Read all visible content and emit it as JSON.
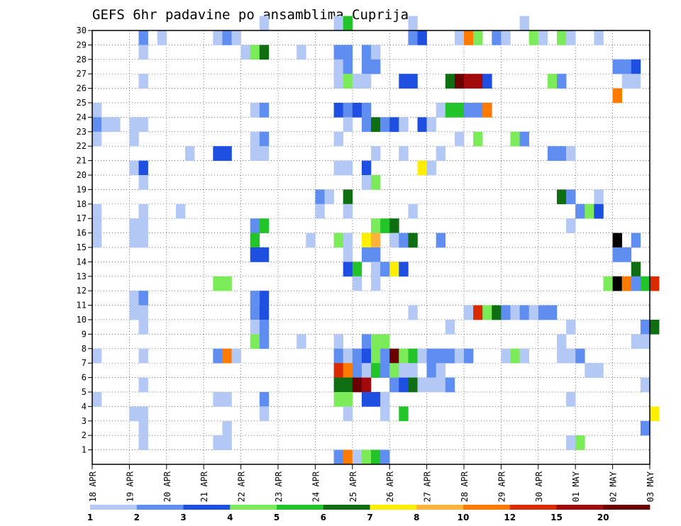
{
  "chart_data": {
    "type": "heatmap",
    "title": "GEFS 6hr padavine po ansamblima Cuprija",
    "x_tick_labels": [
      "18 APR",
      "19 APR",
      "20 APR",
      "21 APR",
      "22 APR",
      "23 APR",
      "24 APR",
      "25 APR",
      "26 APR",
      "27 APR",
      "28 APR",
      "29 APR",
      "30 APR",
      "01 MAY",
      "02 MAY",
      "03 MAY"
    ],
    "y_tick_labels": [
      "1",
      "2",
      "3",
      "4",
      "5",
      "6",
      "7",
      "8",
      "9",
      "10",
      "11",
      "12",
      "13",
      "14",
      "15",
      "16",
      "17",
      "18",
      "19",
      "20",
      "21",
      "22",
      "23",
      "24",
      "25",
      "26",
      "27",
      "28",
      "29",
      "30"
    ],
    "ylim": [
      0,
      30
    ],
    "x_steps": 61,
    "steps_per_day": 4,
    "grid": true,
    "legend_position": "bottom",
    "colorbar_labels": [
      "1",
      "2",
      "3",
      "4",
      "5",
      "6",
      "7",
      "8",
      "10",
      "12",
      "15",
      "20"
    ],
    "colorbar_colors": [
      "#b3c8f5",
      "#5f8ef0",
      "#1f4fe0",
      "#7ceb5a",
      "#22c42a",
      "#0f6e12",
      "#ffee00",
      "#ffb33a",
      "#ff7a00",
      "#d92a00",
      "#a10a0a",
      "#6a0000"
    ],
    "cells": [
      {
        "m": 30,
        "t": [
          [
            18,
            1
          ],
          [
            26,
            1
          ],
          [
            27,
            5
          ],
          [
            34,
            1
          ],
          [
            46,
            1
          ]
        ]
      },
      {
        "m": 29,
        "t": [
          [
            5,
            2
          ],
          [
            7,
            1
          ],
          [
            13,
            1
          ],
          [
            14,
            2
          ],
          [
            15,
            1
          ],
          [
            34,
            2
          ],
          [
            35,
            3
          ],
          [
            39,
            1
          ],
          [
            40,
            9
          ],
          [
            41,
            4
          ],
          [
            43,
            2
          ],
          [
            44,
            1
          ],
          [
            47,
            4
          ],
          [
            48,
            1
          ],
          [
            50,
            4
          ],
          [
            51,
            1
          ],
          [
            54,
            1
          ]
        ]
      },
      {
        "m": 28,
        "t": [
          [
            5,
            1
          ],
          [
            16,
            1
          ],
          [
            17,
            4
          ],
          [
            18,
            6
          ],
          [
            22,
            1
          ],
          [
            26,
            2
          ],
          [
            27,
            2
          ],
          [
            29,
            2
          ],
          [
            30,
            1
          ]
        ]
      },
      {
        "m": 27,
        "t": [
          [
            26,
            1
          ],
          [
            27,
            2
          ],
          [
            29,
            2
          ],
          [
            30,
            2
          ],
          [
            56,
            2
          ],
          [
            57,
            2
          ],
          [
            58,
            3
          ]
        ]
      },
      {
        "m": 26,
        "t": [
          [
            5,
            1
          ],
          [
            26,
            1
          ],
          [
            27,
            4
          ],
          [
            28,
            1
          ],
          [
            29,
            1
          ],
          [
            33,
            3
          ],
          [
            34,
            3
          ],
          [
            38,
            6
          ],
          [
            39,
            12
          ],
          [
            40,
            11
          ],
          [
            41,
            11
          ],
          [
            42,
            3
          ],
          [
            49,
            4
          ],
          [
            50,
            2
          ],
          [
            57,
            1
          ],
          [
            58,
            1
          ]
        ]
      },
      {
        "m": 25,
        "t": [
          [
            56,
            9
          ]
        ]
      },
      {
        "m": 24,
        "t": [
          [
            0,
            1
          ],
          [
            17,
            1
          ],
          [
            18,
            2
          ],
          [
            26,
            3
          ],
          [
            27,
            2
          ],
          [
            28,
            3
          ],
          [
            29,
            2
          ],
          [
            37,
            1
          ],
          [
            38,
            5
          ],
          [
            39,
            5
          ],
          [
            40,
            2
          ],
          [
            41,
            2
          ],
          [
            42,
            9
          ]
        ]
      },
      {
        "m": 23,
        "t": [
          [
            0,
            2
          ],
          [
            1,
            1
          ],
          [
            2,
            1
          ],
          [
            4,
            1
          ],
          [
            5,
            1
          ],
          [
            27,
            1
          ],
          [
            29,
            2
          ],
          [
            30,
            6
          ],
          [
            31,
            2
          ],
          [
            32,
            3
          ],
          [
            33,
            1
          ],
          [
            35,
            3
          ],
          [
            36,
            1
          ]
        ]
      },
      {
        "m": 22,
        "t": [
          [
            0,
            1
          ],
          [
            4,
            1
          ],
          [
            17,
            1
          ],
          [
            18,
            2
          ],
          [
            26,
            1
          ],
          [
            39,
            1
          ],
          [
            41,
            4
          ],
          [
            45,
            4
          ],
          [
            46,
            2
          ]
        ]
      },
      {
        "m": 21,
        "t": [
          [
            10,
            1
          ],
          [
            13,
            3
          ],
          [
            14,
            3
          ],
          [
            17,
            1
          ],
          [
            18,
            1
          ],
          [
            30,
            1
          ],
          [
            33,
            1
          ],
          [
            37,
            1
          ],
          [
            49,
            2
          ],
          [
            50,
            2
          ],
          [
            51,
            1
          ]
        ]
      },
      {
        "m": 20,
        "t": [
          [
            4,
            1
          ],
          [
            5,
            3
          ],
          [
            26,
            1
          ],
          [
            27,
            1
          ],
          [
            29,
            3
          ],
          [
            35,
            7
          ],
          [
            36,
            1
          ]
        ]
      },
      {
        "m": 19,
        "t": [
          [
            5,
            1
          ],
          [
            29,
            1
          ],
          [
            30,
            4
          ]
        ]
      },
      {
        "m": 18,
        "t": [
          [
            24,
            2
          ],
          [
            25,
            1
          ],
          [
            27,
            6
          ],
          [
            50,
            6
          ],
          [
            51,
            2
          ],
          [
            54,
            1
          ]
        ]
      },
      {
        "m": 17,
        "t": [
          [
            0,
            1
          ],
          [
            5,
            1
          ],
          [
            9,
            1
          ],
          [
            24,
            1
          ],
          [
            27,
            1
          ],
          [
            34,
            1
          ],
          [
            52,
            2
          ],
          [
            53,
            4
          ],
          [
            54,
            3
          ]
        ]
      },
      {
        "m": 16,
        "t": [
          [
            0,
            1
          ],
          [
            4,
            1
          ],
          [
            5,
            1
          ],
          [
            17,
            2
          ],
          [
            18,
            5
          ],
          [
            30,
            4
          ],
          [
            31,
            5
          ],
          [
            32,
            6
          ],
          [
            51,
            1
          ]
        ]
      },
      {
        "m": 15,
        "t": [
          [
            0,
            1
          ],
          [
            4,
            1
          ],
          [
            5,
            1
          ],
          [
            17,
            5
          ],
          [
            23,
            1
          ],
          [
            26,
            4
          ],
          [
            27,
            1
          ],
          [
            29,
            7
          ],
          [
            30,
            8
          ],
          [
            32,
            1
          ],
          [
            33,
            2
          ],
          [
            34,
            6
          ],
          [
            37,
            2
          ],
          [
            56,
            13
          ],
          [
            58,
            2
          ]
        ]
      },
      {
        "m": 14,
        "t": [
          [
            17,
            3
          ],
          [
            18,
            3
          ],
          [
            27,
            1
          ],
          [
            29,
            2
          ],
          [
            30,
            2
          ],
          [
            56,
            2
          ],
          [
            57,
            2
          ]
        ]
      },
      {
        "m": 13,
        "t": [
          [
            27,
            3
          ],
          [
            28,
            5
          ],
          [
            30,
            1
          ],
          [
            31,
            2
          ],
          [
            32,
            7
          ],
          [
            33,
            3
          ],
          [
            58,
            6
          ]
        ]
      },
      {
        "m": 12,
        "t": [
          [
            13,
            4
          ],
          [
            14,
            4
          ],
          [
            28,
            1
          ],
          [
            30,
            1
          ],
          [
            55,
            4
          ],
          [
            56,
            13
          ],
          [
            57,
            9
          ],
          [
            58,
            2
          ],
          [
            59,
            5
          ],
          [
            60,
            10
          ]
        ]
      },
      {
        "m": 11,
        "t": [
          [
            4,
            1
          ],
          [
            5,
            2
          ],
          [
            18,
            3
          ],
          [
            17,
            2
          ]
        ]
      },
      {
        "m": 10,
        "t": [
          [
            4,
            1
          ],
          [
            5,
            1
          ],
          [
            17,
            2
          ],
          [
            18,
            3
          ],
          [
            34,
            1
          ],
          [
            40,
            1
          ],
          [
            41,
            10
          ],
          [
            42,
            4
          ],
          [
            43,
            6
          ],
          [
            44,
            2
          ],
          [
            45,
            1
          ],
          [
            46,
            2
          ],
          [
            47,
            1
          ],
          [
            48,
            2
          ],
          [
            49,
            2
          ]
        ]
      },
      {
        "m": 9,
        "t": [
          [
            5,
            1
          ],
          [
            17,
            1
          ],
          [
            18,
            2
          ],
          [
            38,
            1
          ],
          [
            51,
            1
          ],
          [
            59,
            2
          ],
          [
            60,
            6
          ]
        ]
      },
      {
        "m": 8,
        "t": [
          [
            17,
            4
          ],
          [
            18,
            2
          ],
          [
            22,
            1
          ],
          [
            26,
            1
          ],
          [
            29,
            2
          ],
          [
            30,
            4
          ],
          [
            31,
            4
          ],
          [
            50,
            1
          ],
          [
            58,
            1
          ],
          [
            59,
            1
          ]
        ]
      },
      {
        "m": 7,
        "t": [
          [
            0,
            1
          ],
          [
            5,
            1
          ],
          [
            13,
            2
          ],
          [
            14,
            9
          ],
          [
            15,
            1
          ],
          [
            26,
            2
          ],
          [
            27,
            1
          ],
          [
            28,
            2
          ],
          [
            29,
            3
          ],
          [
            30,
            4
          ],
          [
            31,
            2
          ],
          [
            32,
            12
          ],
          [
            33,
            4
          ],
          [
            34,
            5
          ],
          [
            35,
            1
          ],
          [
            36,
            2
          ],
          [
            37,
            2
          ],
          [
            38,
            2
          ],
          [
            39,
            1
          ],
          [
            40,
            2
          ],
          [
            44,
            1
          ],
          [
            45,
            4
          ],
          [
            46,
            1
          ],
          [
            50,
            1
          ],
          [
            51,
            1
          ],
          [
            52,
            2
          ]
        ]
      },
      {
        "m": 6,
        "t": [
          [
            26,
            10
          ],
          [
            27,
            9
          ],
          [
            28,
            2
          ],
          [
            29,
            1
          ],
          [
            30,
            5
          ],
          [
            31,
            2
          ],
          [
            32,
            4
          ],
          [
            33,
            1
          ],
          [
            34,
            1
          ],
          [
            36,
            2
          ],
          [
            37,
            1
          ],
          [
            53,
            1
          ],
          [
            54,
            1
          ]
        ]
      },
      {
        "m": 5,
        "t": [
          [
            5,
            1
          ],
          [
            26,
            6
          ],
          [
            27,
            6
          ],
          [
            28,
            12
          ],
          [
            29,
            11
          ],
          [
            32,
            2
          ],
          [
            33,
            3
          ],
          [
            34,
            6
          ],
          [
            35,
            1
          ],
          [
            36,
            1
          ],
          [
            37,
            1
          ],
          [
            38,
            2
          ],
          [
            59,
            1
          ]
        ]
      },
      {
        "m": 4,
        "t": [
          [
            0,
            1
          ],
          [
            13,
            1
          ],
          [
            14,
            1
          ],
          [
            18,
            2
          ],
          [
            26,
            4
          ],
          [
            27,
            4
          ],
          [
            29,
            3
          ],
          [
            30,
            3
          ],
          [
            31,
            1
          ],
          [
            51,
            1
          ]
        ]
      },
      {
        "m": 3,
        "t": [
          [
            4,
            1
          ],
          [
            5,
            1
          ],
          [
            18,
            1
          ],
          [
            27,
            1
          ],
          [
            31,
            1
          ],
          [
            33,
            5
          ],
          [
            60,
            7
          ]
        ]
      },
      {
        "m": 2,
        "t": [
          [
            5,
            1
          ],
          [
            14,
            1
          ],
          [
            59,
            2
          ]
        ]
      },
      {
        "m": 1,
        "t": [
          [
            5,
            1
          ],
          [
            13,
            1
          ],
          [
            14,
            1
          ],
          [
            51,
            1
          ],
          [
            52,
            4
          ]
        ]
      },
      {
        "m": 0,
        "t": [
          [
            26,
            2
          ],
          [
            27,
            9
          ],
          [
            28,
            1
          ],
          [
            29,
            4
          ],
          [
            30,
            5
          ],
          [
            31,
            2
          ]
        ]
      }
    ]
  }
}
